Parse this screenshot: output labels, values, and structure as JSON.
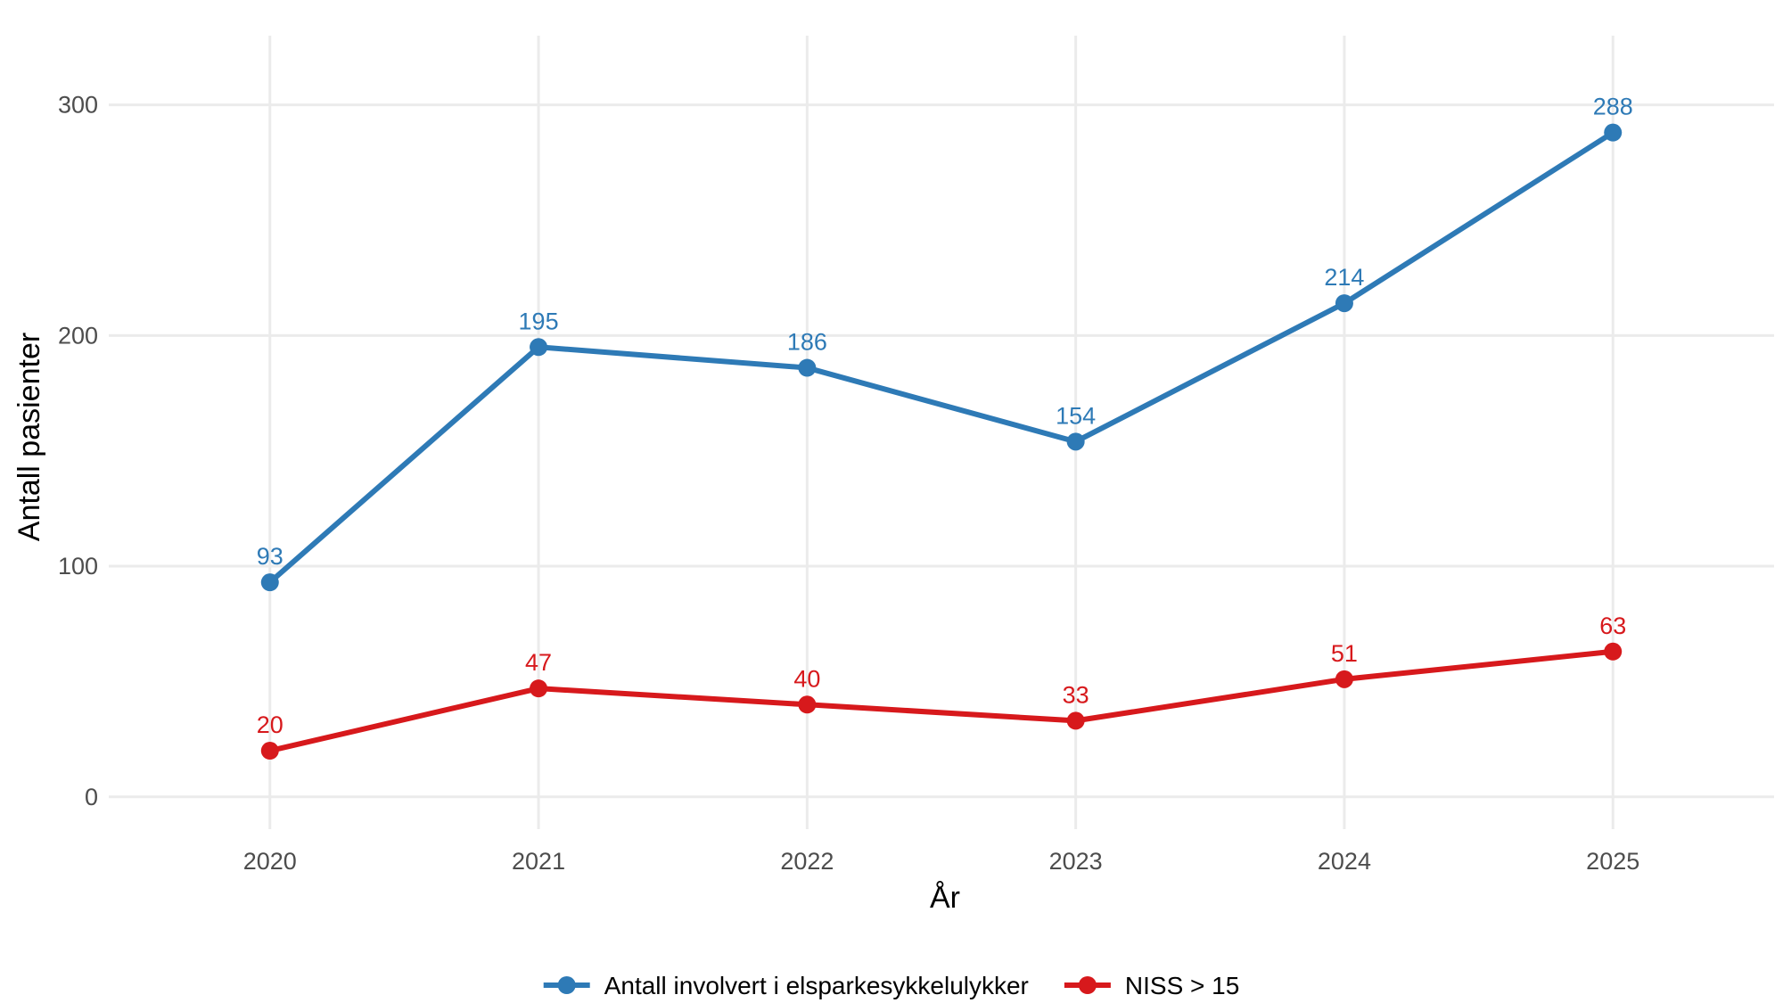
{
  "chart_data": {
    "type": "line",
    "title": "",
    "xlabel": "År",
    "ylabel": "Antall pasienter",
    "x": [
      2020,
      2021,
      2022,
      2023,
      2024,
      2025
    ],
    "x_tick_labels": [
      "2020",
      "2021",
      "2022",
      "2023",
      "2024",
      "2025"
    ],
    "y_ticks": [
      0,
      100,
      200,
      300
    ],
    "y_tick_labels": [
      "0",
      "100",
      "200",
      "300"
    ],
    "xlim": [
      2019.4,
      2025.6
    ],
    "ylim": [
      -14,
      330
    ],
    "grid": true,
    "legend_position": "bottom",
    "series": [
      {
        "name": "Antall involvert i elsparkesykkelulykker",
        "color": "#2e7ab6",
        "values": [
          93,
          195,
          186,
          154,
          214,
          288
        ],
        "data_labels": [
          "93",
          "195",
          "186",
          "154",
          "214",
          "288"
        ]
      },
      {
        "name": "NISS > 15",
        "color": "#d7191c",
        "values": [
          20,
          47,
          40,
          33,
          51,
          63
        ],
        "data_labels": [
          "20",
          "47",
          "40",
          "33",
          "51",
          "63"
        ]
      }
    ]
  }
}
